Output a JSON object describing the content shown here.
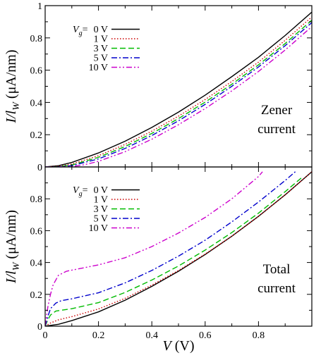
{
  "chart_data": [
    {
      "type": "line",
      "panel": "top",
      "xlim": [
        0,
        1.0
      ],
      "ylim": [
        0,
        1.0
      ],
      "x_ticks": [
        0,
        0.2,
        0.4,
        0.6,
        0.8
      ],
      "y_ticks": [
        0,
        0.2,
        0.4,
        0.6,
        0.8,
        1
      ],
      "y_tick_labels": [
        "0",
        "0.2",
        "0.4",
        "0.6",
        "0.8",
        "1"
      ],
      "ylabel": {
        "main": "I/l",
        "sub": "W",
        "unit": " (μA/nm)"
      },
      "annotation": [
        "Zener",
        "current"
      ],
      "legend": {
        "prefix": "V",
        "prefix_sub": "g",
        "prefix_suffix": "=",
        "placement": "top-left"
      },
      "grid": false,
      "series": [
        {
          "name": "0 V",
          "color": "#000000",
          "dash": "solid",
          "x": [
            0,
            0.05,
            0.1,
            0.2,
            0.3,
            0.4,
            0.5,
            0.6,
            0.7,
            0.8,
            0.9,
            1.0
          ],
          "y": [
            0.0,
            0.008,
            0.028,
            0.087,
            0.16,
            0.245,
            0.34,
            0.445,
            0.56,
            0.68,
            0.815,
            0.96
          ]
        },
        {
          "name": "1 V",
          "color": "#cc0000",
          "dash": "dotted",
          "x": [
            0,
            0.05,
            0.1,
            0.2,
            0.3,
            0.4,
            0.5,
            0.6,
            0.7,
            0.8,
            0.9,
            1.0
          ],
          "y": [
            0.0,
            0.004,
            0.018,
            0.07,
            0.14,
            0.222,
            0.315,
            0.418,
            0.53,
            0.65,
            0.785,
            0.93
          ]
        },
        {
          "name": "3 V",
          "color": "#00bb00",
          "dash": "dashed",
          "x": [
            0,
            0.05,
            0.1,
            0.2,
            0.3,
            0.4,
            0.5,
            0.6,
            0.7,
            0.8,
            0.9,
            1.0
          ],
          "y": [
            0.0,
            0.002,
            0.012,
            0.06,
            0.127,
            0.208,
            0.3,
            0.402,
            0.513,
            0.633,
            0.765,
            0.91
          ]
        },
        {
          "name": "5 V",
          "color": "#0000cc",
          "dash": "dashdot",
          "x": [
            0,
            0.05,
            0.1,
            0.2,
            0.3,
            0.4,
            0.5,
            0.6,
            0.7,
            0.8,
            0.9,
            1.0
          ],
          "y": [
            0.0,
            0.001,
            0.008,
            0.05,
            0.115,
            0.195,
            0.286,
            0.388,
            0.5,
            0.62,
            0.752,
            0.895
          ]
        },
        {
          "name": "10 V",
          "color": "#cc00cc",
          "dash": "dashdotdot",
          "x": [
            0,
            0.05,
            0.1,
            0.15,
            0.2,
            0.3,
            0.4,
            0.5,
            0.6,
            0.7,
            0.8,
            0.9,
            1.0
          ],
          "y": [
            0.0,
            0.0,
            0.002,
            0.015,
            0.035,
            0.095,
            0.172,
            0.262,
            0.362,
            0.472,
            0.592,
            0.725,
            0.87
          ]
        }
      ]
    },
    {
      "type": "line",
      "panel": "bottom",
      "xlim": [
        0,
        1.0
      ],
      "ylim": [
        0,
        1.0
      ],
      "x_ticks": [
        0,
        0.2,
        0.4,
        0.6,
        0.8
      ],
      "x_tick_labels": [
        "0",
        "0.2",
        "0.4",
        "0.6",
        "0.8"
      ],
      "y_ticks": [
        0,
        0.2,
        0.4,
        0.6,
        0.8
      ],
      "y_tick_labels": [
        "0",
        "0.2",
        "0.4",
        "0.6",
        "0.8"
      ],
      "xlabel": {
        "main": "V",
        "unit": " (V)"
      },
      "ylabel": {
        "main": "I/l",
        "sub": "W",
        "unit": " (μA/nm)"
      },
      "annotation": [
        "Total",
        "current"
      ],
      "legend": {
        "prefix": "V",
        "prefix_sub": "g",
        "prefix_suffix": "=",
        "placement": "top-left"
      },
      "grid": false,
      "series": [
        {
          "name": "0 V",
          "color": "#000000",
          "dash": "solid",
          "x": [
            0,
            0.05,
            0.1,
            0.2,
            0.3,
            0.4,
            0.5,
            0.6,
            0.7,
            0.8,
            0.9,
            1.0
          ],
          "y": [
            0.0,
            0.012,
            0.035,
            0.09,
            0.163,
            0.25,
            0.345,
            0.45,
            0.565,
            0.69,
            0.825,
            0.97
          ]
        },
        {
          "name": "1 V",
          "color": "#cc0000",
          "dash": "dotted",
          "x": [
            0,
            0.02,
            0.05,
            0.1,
            0.2,
            0.3,
            0.4,
            0.5,
            0.6,
            0.7,
            0.8,
            0.9,
            1.0
          ],
          "y": [
            0.0,
            0.02,
            0.04,
            0.06,
            0.108,
            0.175,
            0.258,
            0.35,
            0.453,
            0.565,
            0.69,
            0.825,
            0.97
          ]
        },
        {
          "name": "3 V",
          "color": "#00bb00",
          "dash": "dashed",
          "x": [
            0,
            0.01,
            0.02,
            0.04,
            0.1,
            0.2,
            0.3,
            0.4,
            0.5,
            0.6,
            0.7,
            0.8,
            0.9,
            0.96
          ],
          "y": [
            0.0,
            0.04,
            0.07,
            0.095,
            0.11,
            0.148,
            0.212,
            0.29,
            0.378,
            0.478,
            0.588,
            0.71,
            0.845,
            0.93
          ]
        },
        {
          "name": "5 V",
          "color": "#0000cc",
          "dash": "dashdot",
          "x": [
            0,
            0.01,
            0.02,
            0.04,
            0.06,
            0.1,
            0.2,
            0.3,
            0.4,
            0.5,
            0.6,
            0.7,
            0.8,
            0.9,
            0.938
          ],
          "y": [
            0.0,
            0.06,
            0.11,
            0.145,
            0.16,
            0.172,
            0.21,
            0.272,
            0.35,
            0.44,
            0.54,
            0.655,
            0.78,
            0.915,
            0.97
          ]
        },
        {
          "name": "10 V",
          "color": "#cc00cc",
          "dash": "dashdotdot",
          "x": [
            0,
            0.01,
            0.02,
            0.03,
            0.05,
            0.08,
            0.1,
            0.2,
            0.3,
            0.4,
            0.5,
            0.6,
            0.7,
            0.8,
            0.815
          ],
          "y": [
            0.0,
            0.12,
            0.2,
            0.26,
            0.32,
            0.345,
            0.352,
            0.385,
            0.43,
            0.5,
            0.585,
            0.683,
            0.8,
            0.94,
            0.97
          ]
        }
      ]
    }
  ]
}
